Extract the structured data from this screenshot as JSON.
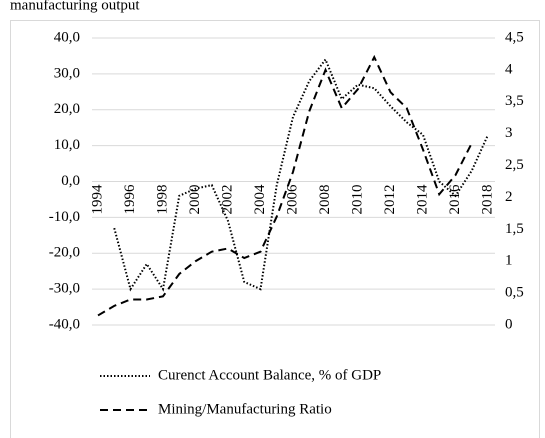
{
  "chart_data": {
    "type": "line",
    "title": "manufacturing output",
    "x": [
      1994,
      1995,
      1996,
      1997,
      1998,
      1999,
      2000,
      2001,
      2002,
      2003,
      2004,
      2005,
      2006,
      2007,
      2008,
      2009,
      2010,
      2011,
      2012,
      2013,
      2014,
      2015,
      2016,
      2017,
      2018
    ],
    "xlim": [
      1994,
      2018
    ],
    "xticks": [
      1994,
      1996,
      1998,
      2000,
      2002,
      2004,
      2006,
      2008,
      2010,
      2012,
      2014,
      2016,
      2018
    ],
    "ylim": [
      -40,
      40
    ],
    "yticks": [
      {
        "value": -40,
        "label": "-40,0"
      },
      {
        "value": -30,
        "label": "-30,0"
      },
      {
        "value": -20,
        "label": "-20,0"
      },
      {
        "value": -10,
        "label": "-10,0"
      },
      {
        "value": 0,
        "label": "0,0"
      },
      {
        "value": 10,
        "label": "10,0"
      },
      {
        "value": 20,
        "label": "20,0"
      },
      {
        "value": 30,
        "label": "30,0"
      },
      {
        "value": 40,
        "label": "40,0"
      }
    ],
    "y2lim": [
      0,
      4.5
    ],
    "y2ticks": [
      0,
      {
        "value": 0.5,
        "label": "0,5"
      },
      1,
      {
        "value": 1.5,
        "label": "1,5"
      },
      2,
      {
        "value": 2.5,
        "label": "2,5"
      },
      3,
      {
        "value": 3.5,
        "label": "3,5"
      },
      4,
      {
        "value": 4.5,
        "label": "4,5"
      }
    ],
    "grid": true,
    "legend": "bottom",
    "series": [
      {
        "name": "Curenct Account Balance, % of GDP",
        "color": "#000000",
        "style": "dotted",
        "values": [
          null,
          -13,
          -30,
          -23,
          -30,
          -4,
          -2,
          -1,
          -11,
          -28,
          -30,
          -1,
          18,
          28,
          34,
          23,
          27,
          26,
          21,
          16.5,
          13,
          0,
          -4,
          3,
          13
        ]
      },
      {
        "name": "Mining/Manufacturing Ratio",
        "color": "#000000",
        "style": "dashed",
        "axis": "y2",
        "values": [
          0.15,
          0.3,
          0.4,
          0.4,
          0.45,
          0.8,
          1.0,
          1.15,
          1.2,
          1.05,
          1.15,
          1.7,
          2.4,
          3.35,
          4.0,
          3.4,
          3.7,
          4.2,
          3.65,
          3.4,
          2.75,
          2.05,
          2.35,
          2.85,
          null
        ]
      }
    ]
  }
}
